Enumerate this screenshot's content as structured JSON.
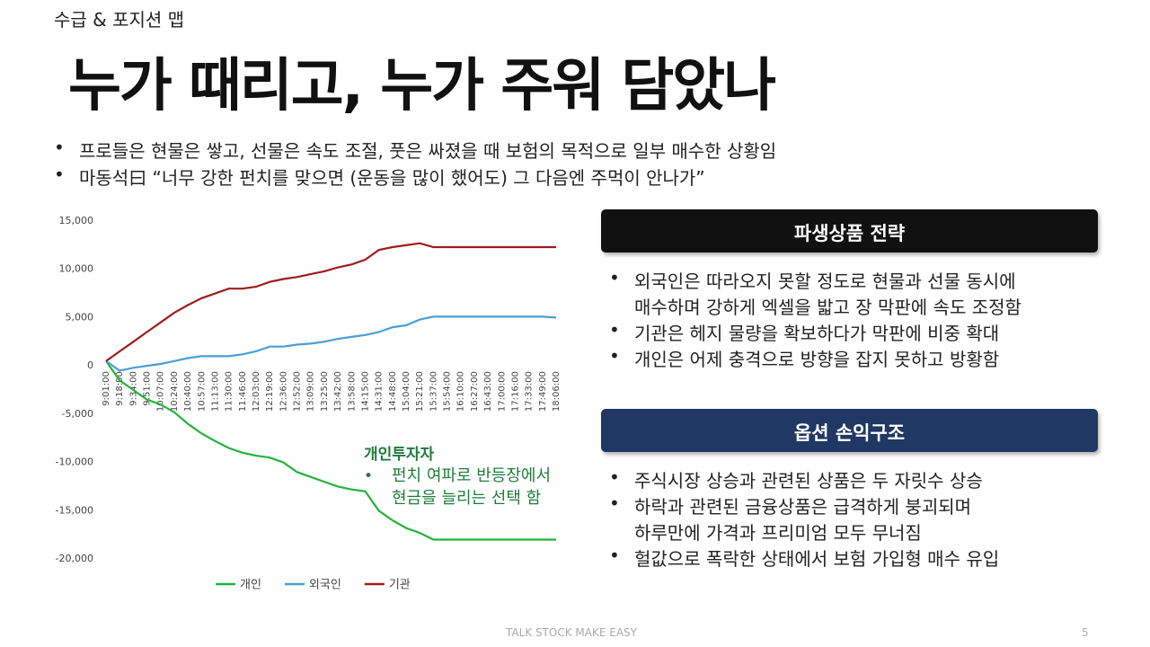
{
  "header": {
    "section": "수급 & 포지션 맵",
    "title": "누가 때리고, 누가 주워 담았나"
  },
  "bullets": [
    "프로들은 현물은 쌓고, 선물은 속도 조절, 풋은 싸졌을 때 보험의 목적으로 일부 매수한 상황임",
    "마동석曰 “너무 강한 펀치를 맞으면 (운동을 많이 했어도) 그 다음엔 주먹이 안나가”"
  ],
  "chart_data": {
    "type": "line",
    "categories": [
      "9:01:00",
      "9:18:00",
      "9:34:00",
      "9:51:00",
      "10:07:00",
      "10:24:00",
      "10:40:00",
      "10:57:00",
      "11:13:00",
      "11:30:00",
      "11:46:00",
      "12:03:00",
      "12:19:00",
      "12:36:00",
      "12:52:00",
      "13:09:00",
      "13:25:00",
      "13:42:00",
      "13:58:00",
      "14:15:00",
      "14:31:00",
      "14:48:00",
      "15:04:00",
      "15:21:00",
      "15:37:00",
      "15:54:00",
      "16:10:00",
      "16:27:00",
      "16:43:00",
      "17:00:00",
      "17:16:00",
      "17:33:00",
      "17:49:00",
      "18:06:00"
    ],
    "series": [
      {
        "name": "개인",
        "color": "#22b33a",
        "values": [
          500,
          -1500,
          -2500,
          -3500,
          -4000,
          -4800,
          -6000,
          -7000,
          -7800,
          -8500,
          -9000,
          -9300,
          -9500,
          -10000,
          -11000,
          -11500,
          -12000,
          -12500,
          -12800,
          -13000,
          -15000,
          -16000,
          -16800,
          -17300,
          -18000,
          -18000,
          -18000,
          -18000,
          -18000,
          -18000,
          -18000,
          -18000,
          -18000,
          -18000
        ]
      },
      {
        "name": "외국인",
        "color": "#4a9fd6",
        "values": [
          500,
          -500,
          -200,
          0,
          200,
          500,
          800,
          1000,
          1000,
          1000,
          1200,
          1500,
          2000,
          2000,
          2200,
          2300,
          2500,
          2800,
          3000,
          3200,
          3500,
          4000,
          4200,
          4800,
          5100,
          5100,
          5100,
          5100,
          5100,
          5100,
          5100,
          5100,
          5100,
          5000
        ]
      },
      {
        "name": "기관",
        "color": "#a01c1c",
        "values": [
          500,
          1500,
          2500,
          3500,
          4500,
          5500,
          6300,
          7000,
          7500,
          8000,
          8000,
          8200,
          8700,
          9000,
          9200,
          9500,
          9800,
          10200,
          10500,
          11000,
          12000,
          12300,
          12500,
          12700,
          12300,
          12300,
          12300,
          12300,
          12300,
          12300,
          12300,
          12300,
          12300,
          12300
        ]
      }
    ],
    "ylim": [
      -20000,
      15000
    ],
    "yticks": [
      {
        "value": 15000,
        "label": "15,000"
      },
      {
        "value": 10000,
        "label": "10,000"
      },
      {
        "value": 5000,
        "label": "5,000"
      },
      0,
      {
        "value": -5000,
        "label": "-5,000"
      },
      {
        "value": -10000,
        "label": "-10,000"
      },
      {
        "value": -15000,
        "label": "-15,000"
      },
      {
        "value": -20000,
        "label": "-20,000"
      }
    ],
    "grid": false,
    "legend": "bottom",
    "annotation": {
      "title": "개인투자자",
      "lines": [
        "펀치 여파로 반등장에서",
        "현금을 늘리는 선택 함"
      ]
    }
  },
  "panels": [
    {
      "title": "파생상품 전략",
      "items": [
        [
          "외국인은 따라오지 못할 정도로 현물과 선물 동시에",
          "매수하며 강하게 엑셀을 밟고 장 막판에 속도 조정함"
        ],
        [
          "기관은 헤지 물량을 확보하다가 막판에 비중 확대"
        ],
        [
          "개인은 어제 충격으로 방향을 잡지 못하고 방황함"
        ]
      ]
    },
    {
      "title": "옵션 손익구조",
      "items": [
        [
          "주식시장 상승과 관련된 상품은 두 자릿수 상승"
        ],
        [
          "하락과 관련된 금융상품은 급격하게 붕괴되며",
          "하루만에 가격과 프리미엄 모두 무너짐"
        ],
        [
          "헐값으로 폭락한 상태에서 보험 가입형 매수 유입"
        ]
      ]
    }
  ],
  "footer": {
    "text": "TALK STOCK MAKE EASY",
    "page": 5
  }
}
